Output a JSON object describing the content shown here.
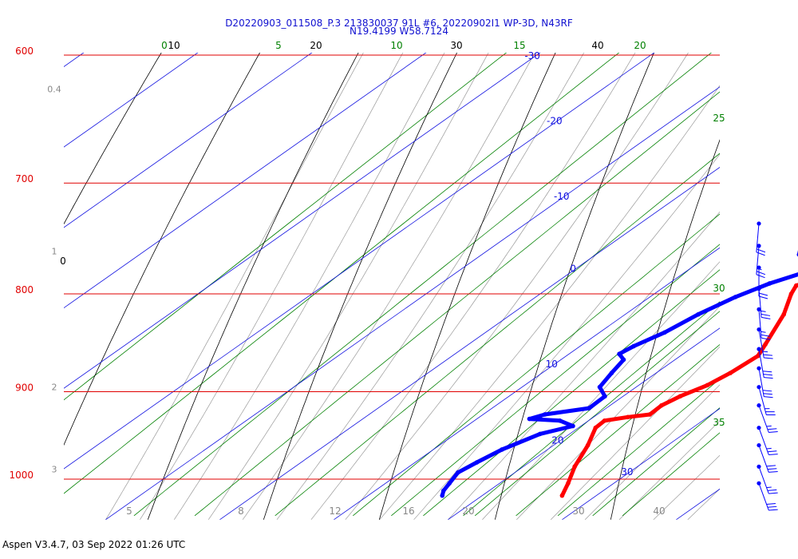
{
  "title": {
    "line1": "D20220903_011508_P.3 213830037 91L #6, 20220902I1 WP-3D, N43RF",
    "line2": "N19.4199 W58.7124"
  },
  "footer": "Aspen V3.4.7, 03 Sep 2022  01:26 UTC",
  "colors": {
    "isobar": "#e00000",
    "isotherm": "#1010e0",
    "mixing_ratio": "#008000",
    "dry_adiabat": "#000000",
    "moist_adiabat": "#9a9a9a",
    "temperature": "#ff0000",
    "dewpoint": "#0000ff",
    "wind_barb": "#0000ff"
  },
  "chart_data": {
    "type": "skew-t log-p sounding",
    "pressure_labels": [
      {
        "p": 600,
        "label": "600"
      },
      {
        "p": 700,
        "label": "700"
      },
      {
        "p": 800,
        "label": "800"
      },
      {
        "p": 900,
        "label": "900"
      },
      {
        "p": 1000,
        "label": "1000"
      }
    ],
    "height_labels": [
      {
        "p": 625,
        "label": "0.4"
      },
      {
        "p": 760,
        "label": "1"
      },
      {
        "p": 895,
        "label": "2"
      },
      {
        "p": 988,
        "label": "3"
      }
    ],
    "temperature_axis_labels": [
      "5",
      "8",
      "12",
      "16",
      "20",
      "30",
      "40"
    ],
    "isotherms": [
      -30,
      -20,
      -10,
      0,
      10,
      20,
      30
    ],
    "isotherm_labels": [
      {
        "t": -30,
        "label": "-30"
      },
      {
        "t": -20,
        "label": "-20"
      },
      {
        "t": -10,
        "label": "-10"
      },
      {
        "t": 0,
        "label": "0"
      },
      {
        "t": 10,
        "label": "10"
      },
      {
        "t": 20,
        "label": "20"
      },
      {
        "t": 30,
        "label": "30"
      }
    ],
    "dry_adiabat_labels": [
      "0",
      "10",
      "20",
      "30",
      "40"
    ],
    "mixing_ratio_labels": [
      "0",
      "5",
      "10",
      "15",
      "20",
      "25",
      "30",
      "35"
    ],
    "temperature_profile": [
      {
        "p": 1020,
        "t": 27.0
      },
      {
        "p": 1005,
        "t": 26.0
      },
      {
        "p": 985,
        "t": 24.5
      },
      {
        "p": 960,
        "t": 23.0
      },
      {
        "p": 940,
        "t": 21.5
      },
      {
        "p": 932,
        "t": 21.4
      },
      {
        "p": 928,
        "t": 23.0
      },
      {
        "p": 925,
        "t": 24.6
      },
      {
        "p": 915,
        "t": 24.5
      },
      {
        "p": 905,
        "t": 25.0
      },
      {
        "p": 893,
        "t": 26.0
      },
      {
        "p": 880,
        "t": 26.5
      },
      {
        "p": 862,
        "t": 26.8
      },
      {
        "p": 850,
        "t": 26.0
      },
      {
        "p": 820,
        "t": 23.9
      },
      {
        "p": 800,
        "t": 22.0
      },
      {
        "p": 792,
        "t": 21.4
      },
      {
        "p": 785,
        "t": 22.5
      },
      {
        "p": 772,
        "t": 22.8
      },
      {
        "p": 760,
        "t": 22.6
      },
      {
        "p": 750,
        "t": 22.8
      },
      {
        "p": 738,
        "t": 23.2
      },
      {
        "p": 725,
        "t": 22.9
      }
    ],
    "dewpoint_profile": [
      {
        "p": 1020,
        "t": 16.5
      },
      {
        "p": 1014,
        "t": 16.0
      },
      {
        "p": 1005,
        "t": 15.6
      },
      {
        "p": 992,
        "t": 15.0
      },
      {
        "p": 980,
        "t": 15.4
      },
      {
        "p": 965,
        "t": 16.0
      },
      {
        "p": 947,
        "t": 17.4
      },
      {
        "p": 938,
        "t": 19.3
      },
      {
        "p": 932,
        "t": 17.5
      },
      {
        "p": 930,
        "t": 14.6
      },
      {
        "p": 925,
        "t": 15.4
      },
      {
        "p": 918,
        "t": 18.5
      },
      {
        "p": 905,
        "t": 18.4
      },
      {
        "p": 895,
        "t": 16.8
      },
      {
        "p": 880,
        "t": 16.1
      },
      {
        "p": 866,
        "t": 15.5
      },
      {
        "p": 860,
        "t": 14.4
      },
      {
        "p": 852,
        "t": 14.7
      },
      {
        "p": 838,
        "t": 15.7
      },
      {
        "p": 820,
        "t": 16.4
      },
      {
        "p": 803,
        "t": 17.5
      },
      {
        "p": 790,
        "t": 18.8
      },
      {
        "p": 780,
        "t": 20.4
      },
      {
        "p": 770,
        "t": 19.3
      },
      {
        "p": 763,
        "t": 17.8
      },
      {
        "p": 756,
        "t": 17.0
      },
      {
        "p": 748,
        "t": 17.9
      },
      {
        "p": 740,
        "t": 18.5
      },
      {
        "p": 733,
        "t": 17.5
      },
      {
        "p": 725,
        "t": 16.8
      }
    ],
    "wind_barbs": [
      {
        "p": 735,
        "direction": 80,
        "speed_kt": 20
      },
      {
        "p": 755,
        "direction": 80,
        "speed_kt": 25
      },
      {
        "p": 775,
        "direction": 75,
        "speed_kt": 20
      },
      {
        "p": 795,
        "direction": 70,
        "speed_kt": 25
      },
      {
        "p": 815,
        "direction": 70,
        "speed_kt": 25
      },
      {
        "p": 835,
        "direction": 65,
        "speed_kt": 25
      },
      {
        "p": 855,
        "direction": 65,
        "speed_kt": 30
      },
      {
        "p": 875,
        "direction": 65,
        "speed_kt": 30
      },
      {
        "p": 895,
        "direction": 60,
        "speed_kt": 25
      },
      {
        "p": 915,
        "direction": 55,
        "speed_kt": 25
      },
      {
        "p": 940,
        "direction": 55,
        "speed_kt": 25
      },
      {
        "p": 960,
        "direction": 55,
        "speed_kt": 30
      },
      {
        "p": 985,
        "direction": 55,
        "speed_kt": 25
      },
      {
        "p": 1005,
        "direction": 55,
        "speed_kt": 30
      }
    ]
  }
}
